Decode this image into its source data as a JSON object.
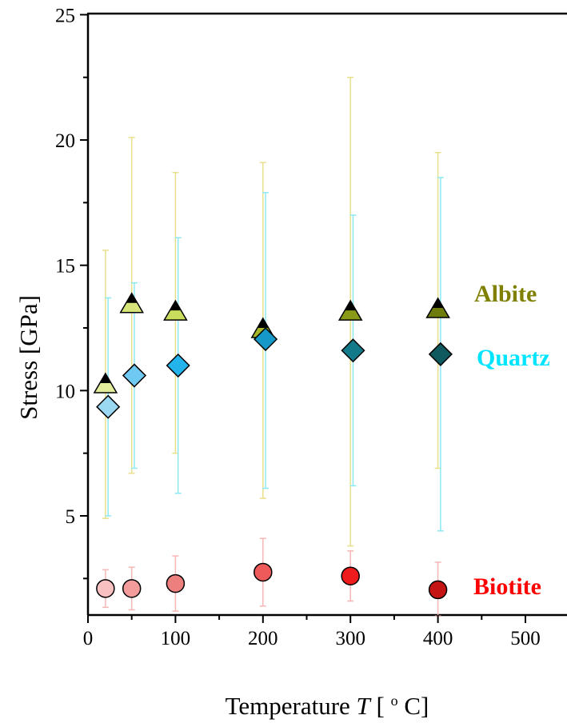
{
  "chart_data": {
    "type": "scatter",
    "xlabel": "Temperature ",
    "xlabel_var": "T",
    "xlabel_unit": " [ ",
    "xlabel_sup": "o",
    "xlabel_end": " C]",
    "ylabel": "Stress [GPa]",
    "xlim": [
      0,
      550
    ],
    "ylim": [
      1,
      25
    ],
    "xticks": [
      0,
      100,
      200,
      300,
      400,
      500
    ],
    "yticks": [
      5,
      10,
      15,
      20,
      25
    ],
    "xtick_labels": [
      "0",
      "100",
      "200",
      "300",
      "400",
      "500"
    ],
    "ytick_labels": [
      "5",
      "10",
      "15",
      "20",
      "25"
    ],
    "series": [
      {
        "name": "Albite",
        "marker": "triangle",
        "label_color": "#7f7f00",
        "errorbar_color": "#e8e08a",
        "points": [
          {
            "x": 20,
            "y": 10.3,
            "ylow": 4.9,
            "yhigh": 15.6,
            "fill": "#e3ec9a"
          },
          {
            "x": 50,
            "y": 13.5,
            "ylow": 6.7,
            "yhigh": 20.1,
            "fill": "#d6e47a"
          },
          {
            "x": 100,
            "y": 13.2,
            "ylow": 7.5,
            "yhigh": 18.7,
            "fill": "#c9dc5c"
          },
          {
            "x": 200,
            "y": 12.5,
            "ylow": 5.7,
            "yhigh": 19.1,
            "fill": "#a6b82a"
          },
          {
            "x": 300,
            "y": 13.2,
            "ylow": 3.8,
            "yhigh": 22.5,
            "fill": "#8a9a18"
          },
          {
            "x": 400,
            "y": 13.3,
            "ylow": 6.9,
            "yhigh": 19.5,
            "fill": "#6e7c0c"
          }
        ]
      },
      {
        "name": "Quartz",
        "marker": "diamond",
        "label_color": "#00e5ff",
        "errorbar_color": "#8ee8f4",
        "points": [
          {
            "x": 23,
            "y": 9.35,
            "ylow": 5.0,
            "yhigh": 13.7,
            "fill": "#9ad8f2"
          },
          {
            "x": 53,
            "y": 10.6,
            "ylow": 6.9,
            "yhigh": 14.3,
            "fill": "#6ecaf2"
          },
          {
            "x": 103,
            "y": 11.0,
            "ylow": 5.9,
            "yhigh": 16.1,
            "fill": "#22b4ea"
          },
          {
            "x": 203,
            "y": 12.05,
            "ylow": 6.1,
            "yhigh": 17.9,
            "fill": "#1699c8"
          },
          {
            "x": 303,
            "y": 11.6,
            "ylow": 6.2,
            "yhigh": 17.0,
            "fill": "#137a8a"
          },
          {
            "x": 403,
            "y": 11.45,
            "ylow": 4.4,
            "yhigh": 18.5,
            "fill": "#0e5a5f"
          }
        ]
      },
      {
        "name": "Biotite",
        "marker": "circle",
        "label_color": "#ff0000",
        "errorbar_color": "#f6b6b6",
        "points": [
          {
            "x": 20,
            "y": 2.1,
            "ylow": 1.35,
            "yhigh": 2.85,
            "fill": "#f8c0c0"
          },
          {
            "x": 50,
            "y": 2.1,
            "ylow": 1.25,
            "yhigh": 2.95,
            "fill": "#f49b9b"
          },
          {
            "x": 100,
            "y": 2.3,
            "ylow": 1.2,
            "yhigh": 3.4,
            "fill": "#ee7f7f"
          },
          {
            "x": 200,
            "y": 2.75,
            "ylow": 1.4,
            "yhigh": 4.1,
            "fill": "#ee5a5a"
          },
          {
            "x": 300,
            "y": 2.6,
            "ylow": 1.6,
            "yhigh": 3.6,
            "fill": "#ee1c1c"
          },
          {
            "x": 400,
            "y": 2.05,
            "ylow": 1.0,
            "yhigh": 3.15,
            "fill": "#c41414"
          }
        ]
      }
    ]
  }
}
